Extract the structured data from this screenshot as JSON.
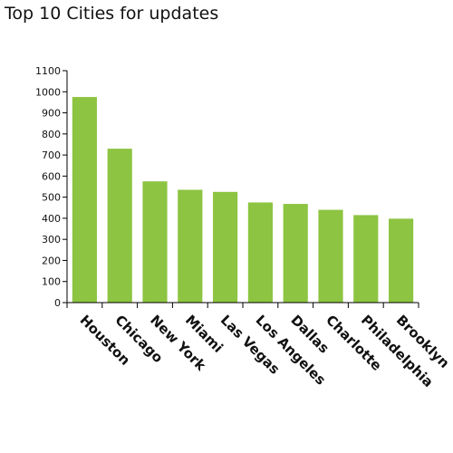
{
  "chart_data": {
    "type": "bar",
    "title": "Top 10 Cities for updates",
    "xlabel": "",
    "ylabel": "",
    "categories": [
      "Houston",
      "Chicago",
      "New York",
      "Miami",
      "Las Vegas",
      "Los Angeles",
      "Dallas",
      "Charlotte",
      "Philadelphia",
      "Brooklyn"
    ],
    "values": [
      975,
      730,
      575,
      535,
      525,
      475,
      468,
      440,
      415,
      398
    ],
    "ylim": [
      0,
      1100
    ],
    "yticks": [
      0,
      100,
      200,
      300,
      400,
      500,
      600,
      700,
      800,
      900,
      1000,
      1100
    ],
    "grid": false,
    "legend": "none",
    "bar_color": "#8dc441",
    "axis_color": "#000000"
  }
}
